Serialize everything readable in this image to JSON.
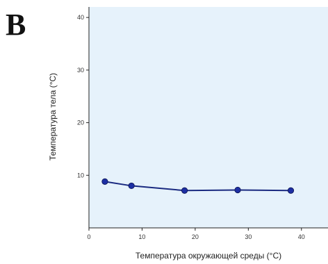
{
  "panel_label": "B",
  "chart_data": {
    "type": "line",
    "xlabel": "Температура окружающей среды (°C)",
    "ylabel": "Температура тела (°C)",
    "xlim": [
      0,
      45
    ],
    "ylim": [
      0,
      42
    ],
    "xticks": [
      0,
      10,
      20,
      30,
      40
    ],
    "yticks": [
      10,
      20,
      30,
      40
    ],
    "grid": false,
    "colors": {
      "background": "#e6f2fb",
      "line": "#1a2a80",
      "marker": "#1d2fa3",
      "axis": "#222222"
    },
    "series": [
      {
        "x": [
          3,
          8,
          18,
          28,
          38
        ],
        "y": [
          8.8,
          8.0,
          7.1,
          7.2,
          7.1
        ]
      }
    ]
  }
}
